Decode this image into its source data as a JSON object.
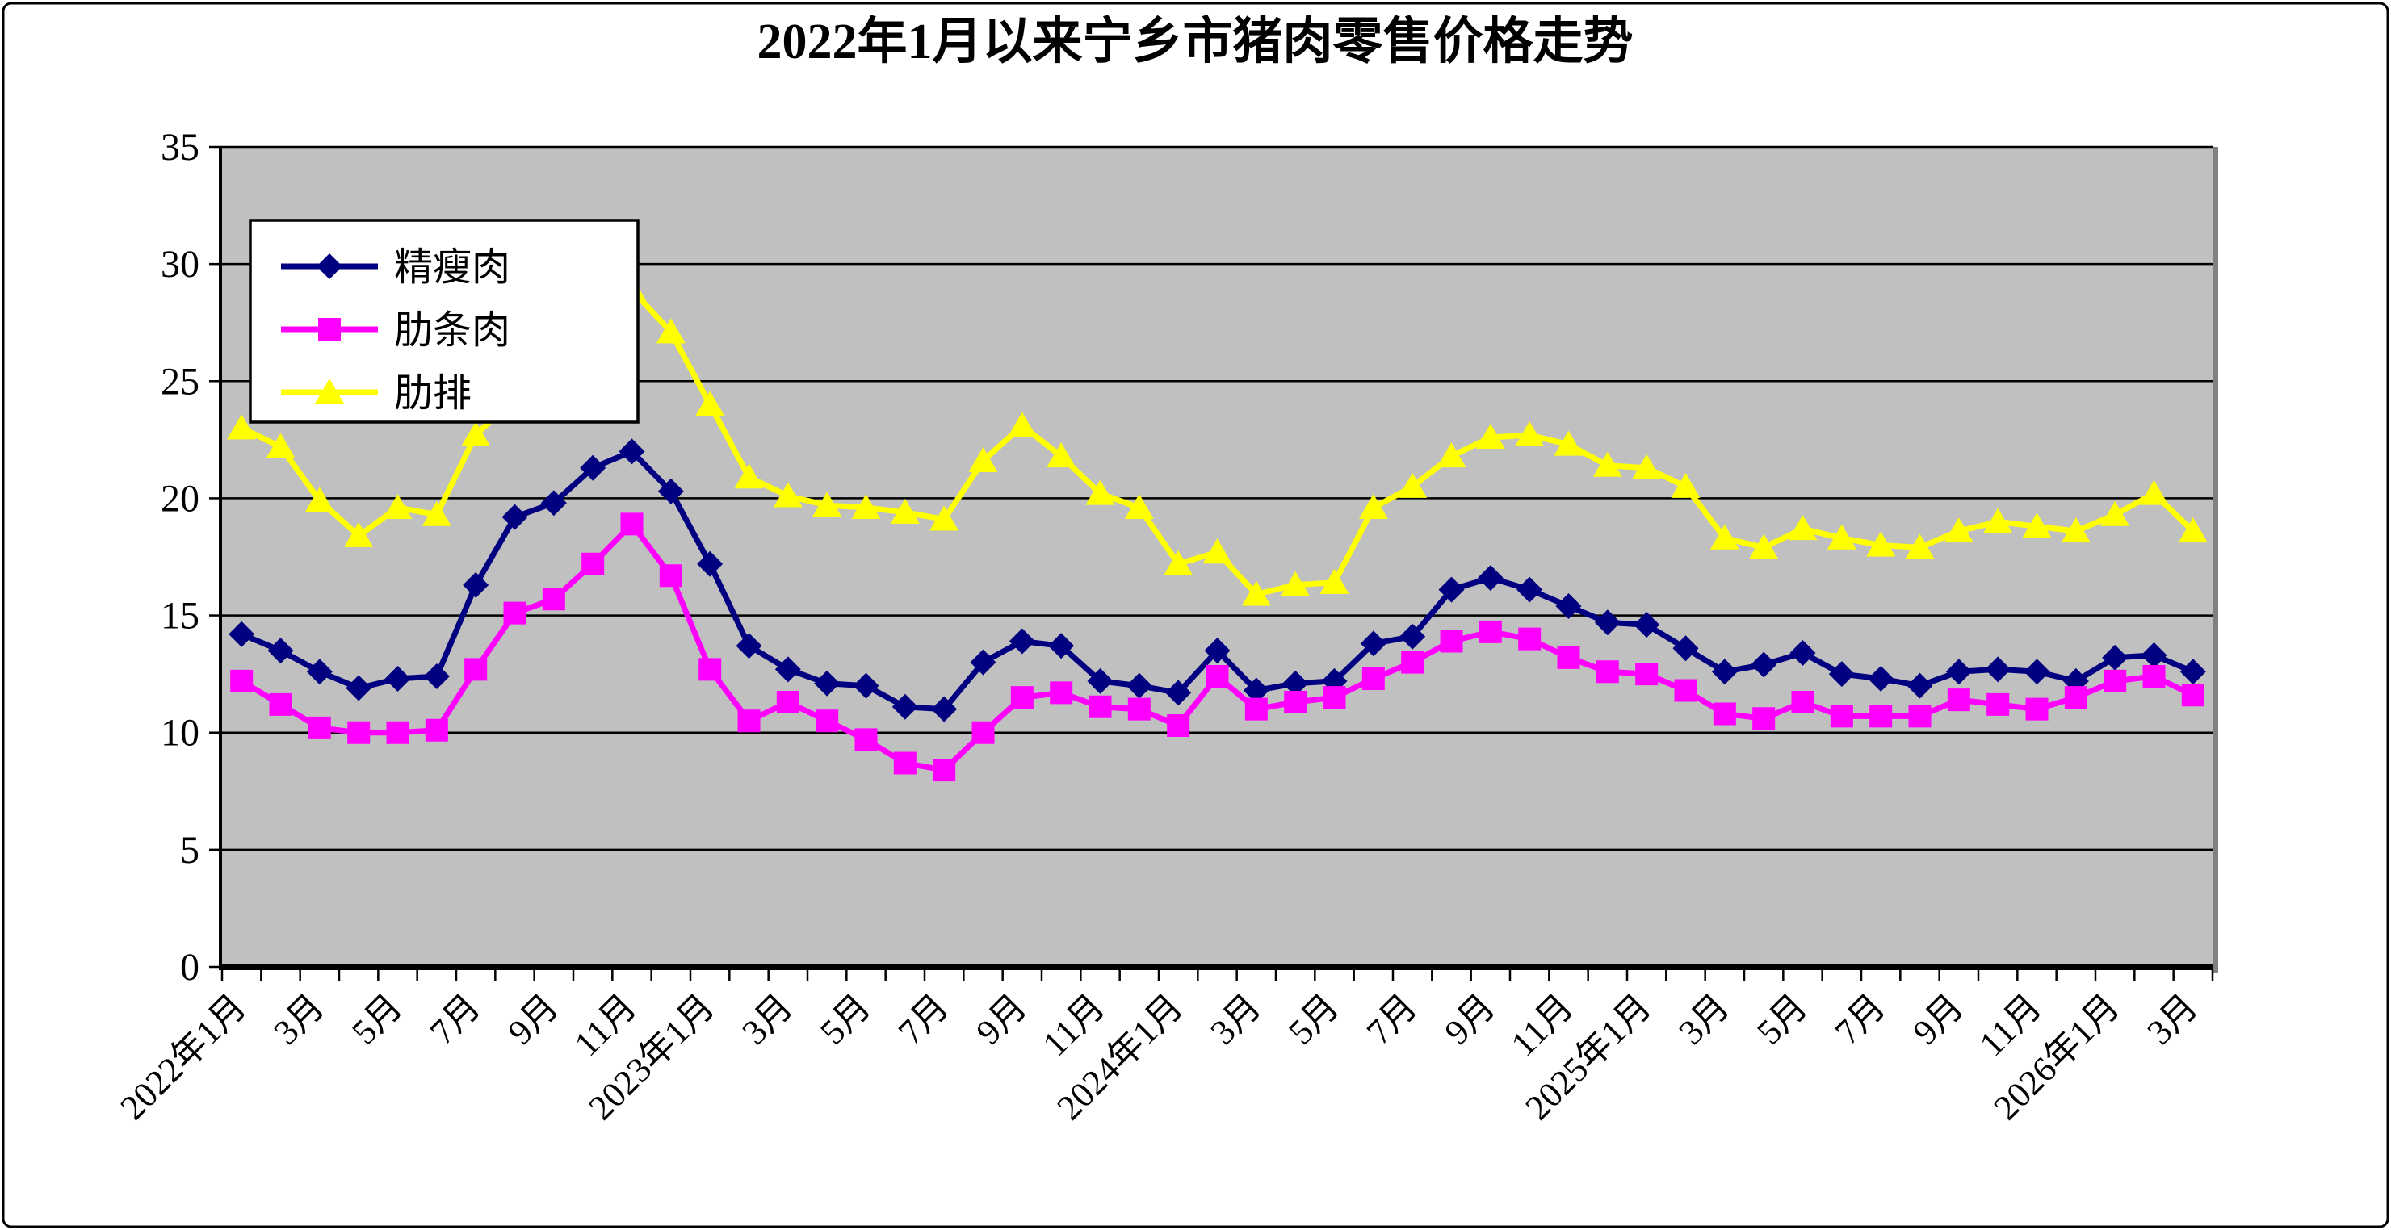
{
  "chart_data": {
    "type": "line",
    "title": "2022年1月以来宁乡市猪肉零售价格走势",
    "xlabel": "",
    "ylabel": "",
    "ylim": [
      0,
      35
    ],
    "ytick_interval": 5,
    "yticks": [
      0,
      5,
      10,
      15,
      20,
      25,
      30,
      35
    ],
    "grid": "horizontal",
    "plot_bg_color": "#C0C0C0",
    "grid_color": "#000000",
    "axis_color": "#000000",
    "right_shadow_color": "#808080",
    "legend_position": "upper-left-inside",
    "x_visible_tick_labels": [
      "2022年1月",
      "3月",
      "5月",
      "7月",
      "9月",
      "11月",
      "2023年1月",
      "3月",
      "5月",
      "7月",
      "9月",
      "11月",
      "2024年1月",
      "3月",
      "5月",
      "7月",
      "9月",
      "11月",
      "2025年1月",
      "3月",
      "5月",
      "7月",
      "9月",
      "11月",
      "2026年1月",
      "3月"
    ],
    "x_months": [
      "2022年1月",
      "2022年2月",
      "2022年3月",
      "2022年4月",
      "2022年5月",
      "2022年6月",
      "2022年7月",
      "2022年8月",
      "2022年9月",
      "2022年10月",
      "2022年11月",
      "2022年12月",
      "2023年1月",
      "2023年2月",
      "2023年3月",
      "2023年4月",
      "2023年5月",
      "2023年6月",
      "2023年7月",
      "2023年8月",
      "2023年9月",
      "2023年10月",
      "2023年11月",
      "2023年12月",
      "2024年1月",
      "2024年2月",
      "2024年3月",
      "2024年4月",
      "2024年5月",
      "2024年6月",
      "2024年7月",
      "2024年8月",
      "2024年9月",
      "2024年10月",
      "2024年11月",
      "2024年12月",
      "2025年1月",
      "2025年2月",
      "2025年3月",
      "2025年4月",
      "2025年5月",
      "2025年6月",
      "2025年7月",
      "2025年8月",
      "2025年9月",
      "2025年10月",
      "2025年11月",
      "2025年12月",
      "2026年1月",
      "2026年2月",
      "2026年3月"
    ],
    "series": [
      {
        "name": "精瘦肉",
        "key": "lean-pork",
        "color": "#000080",
        "marker": "diamond",
        "values": [
          14.2,
          13.5,
          12.6,
          11.9,
          12.3,
          12.4,
          16.3,
          19.2,
          19.8,
          21.3,
          22.0,
          20.3,
          17.2,
          13.7,
          12.7,
          12.1,
          12.0,
          11.1,
          11.0,
          13.0,
          13.9,
          13.7,
          12.2,
          12.0,
          11.7,
          13.5,
          11.8,
          12.1,
          12.2,
          13.8,
          14.1,
          16.1,
          16.6,
          16.1,
          15.4,
          14.7,
          14.6,
          13.6,
          12.6,
          12.9,
          13.4,
          12.5,
          12.3,
          12.0,
          12.6,
          12.7,
          12.6,
          12.2,
          13.2,
          13.3,
          12.6
        ]
      },
      {
        "name": "肋条肉",
        "key": "rib-meat",
        "color": "#FF00FF",
        "marker": "square",
        "values": [
          12.2,
          11.2,
          10.2,
          10.0,
          10.0,
          10.1,
          12.7,
          15.1,
          15.7,
          17.2,
          18.9,
          16.7,
          12.7,
          10.5,
          11.3,
          10.5,
          9.7,
          8.7,
          8.4,
          10.0,
          11.5,
          11.7,
          11.1,
          11.0,
          10.3,
          12.4,
          11.0,
          11.3,
          11.5,
          12.3,
          13.0,
          13.9,
          14.3,
          14.0,
          13.2,
          12.6,
          12.5,
          11.8,
          10.8,
          10.6,
          11.3,
          10.7,
          10.7,
          10.7,
          11.4,
          11.2,
          11.0,
          11.5,
          12.2,
          12.4,
          11.6
        ]
      },
      {
        "name": "肋排",
        "key": "spare-ribs",
        "color": "#FFFF00",
        "marker": "triangle",
        "values": [
          23.0,
          22.2,
          19.9,
          18.4,
          19.6,
          19.3,
          22.7,
          24.3,
          25.8,
          27.4,
          28.9,
          27.1,
          24.0,
          20.9,
          20.1,
          19.7,
          19.6,
          19.4,
          19.1,
          21.6,
          23.1,
          21.8,
          20.2,
          19.6,
          17.2,
          17.7,
          15.9,
          16.3,
          16.4,
          19.6,
          20.5,
          21.8,
          22.6,
          22.7,
          22.3,
          21.4,
          21.3,
          20.5,
          18.3,
          17.9,
          18.7,
          18.3,
          18.0,
          17.9,
          18.6,
          19.0,
          18.8,
          18.6,
          19.3,
          20.2,
          18.6
        ]
      }
    ]
  }
}
